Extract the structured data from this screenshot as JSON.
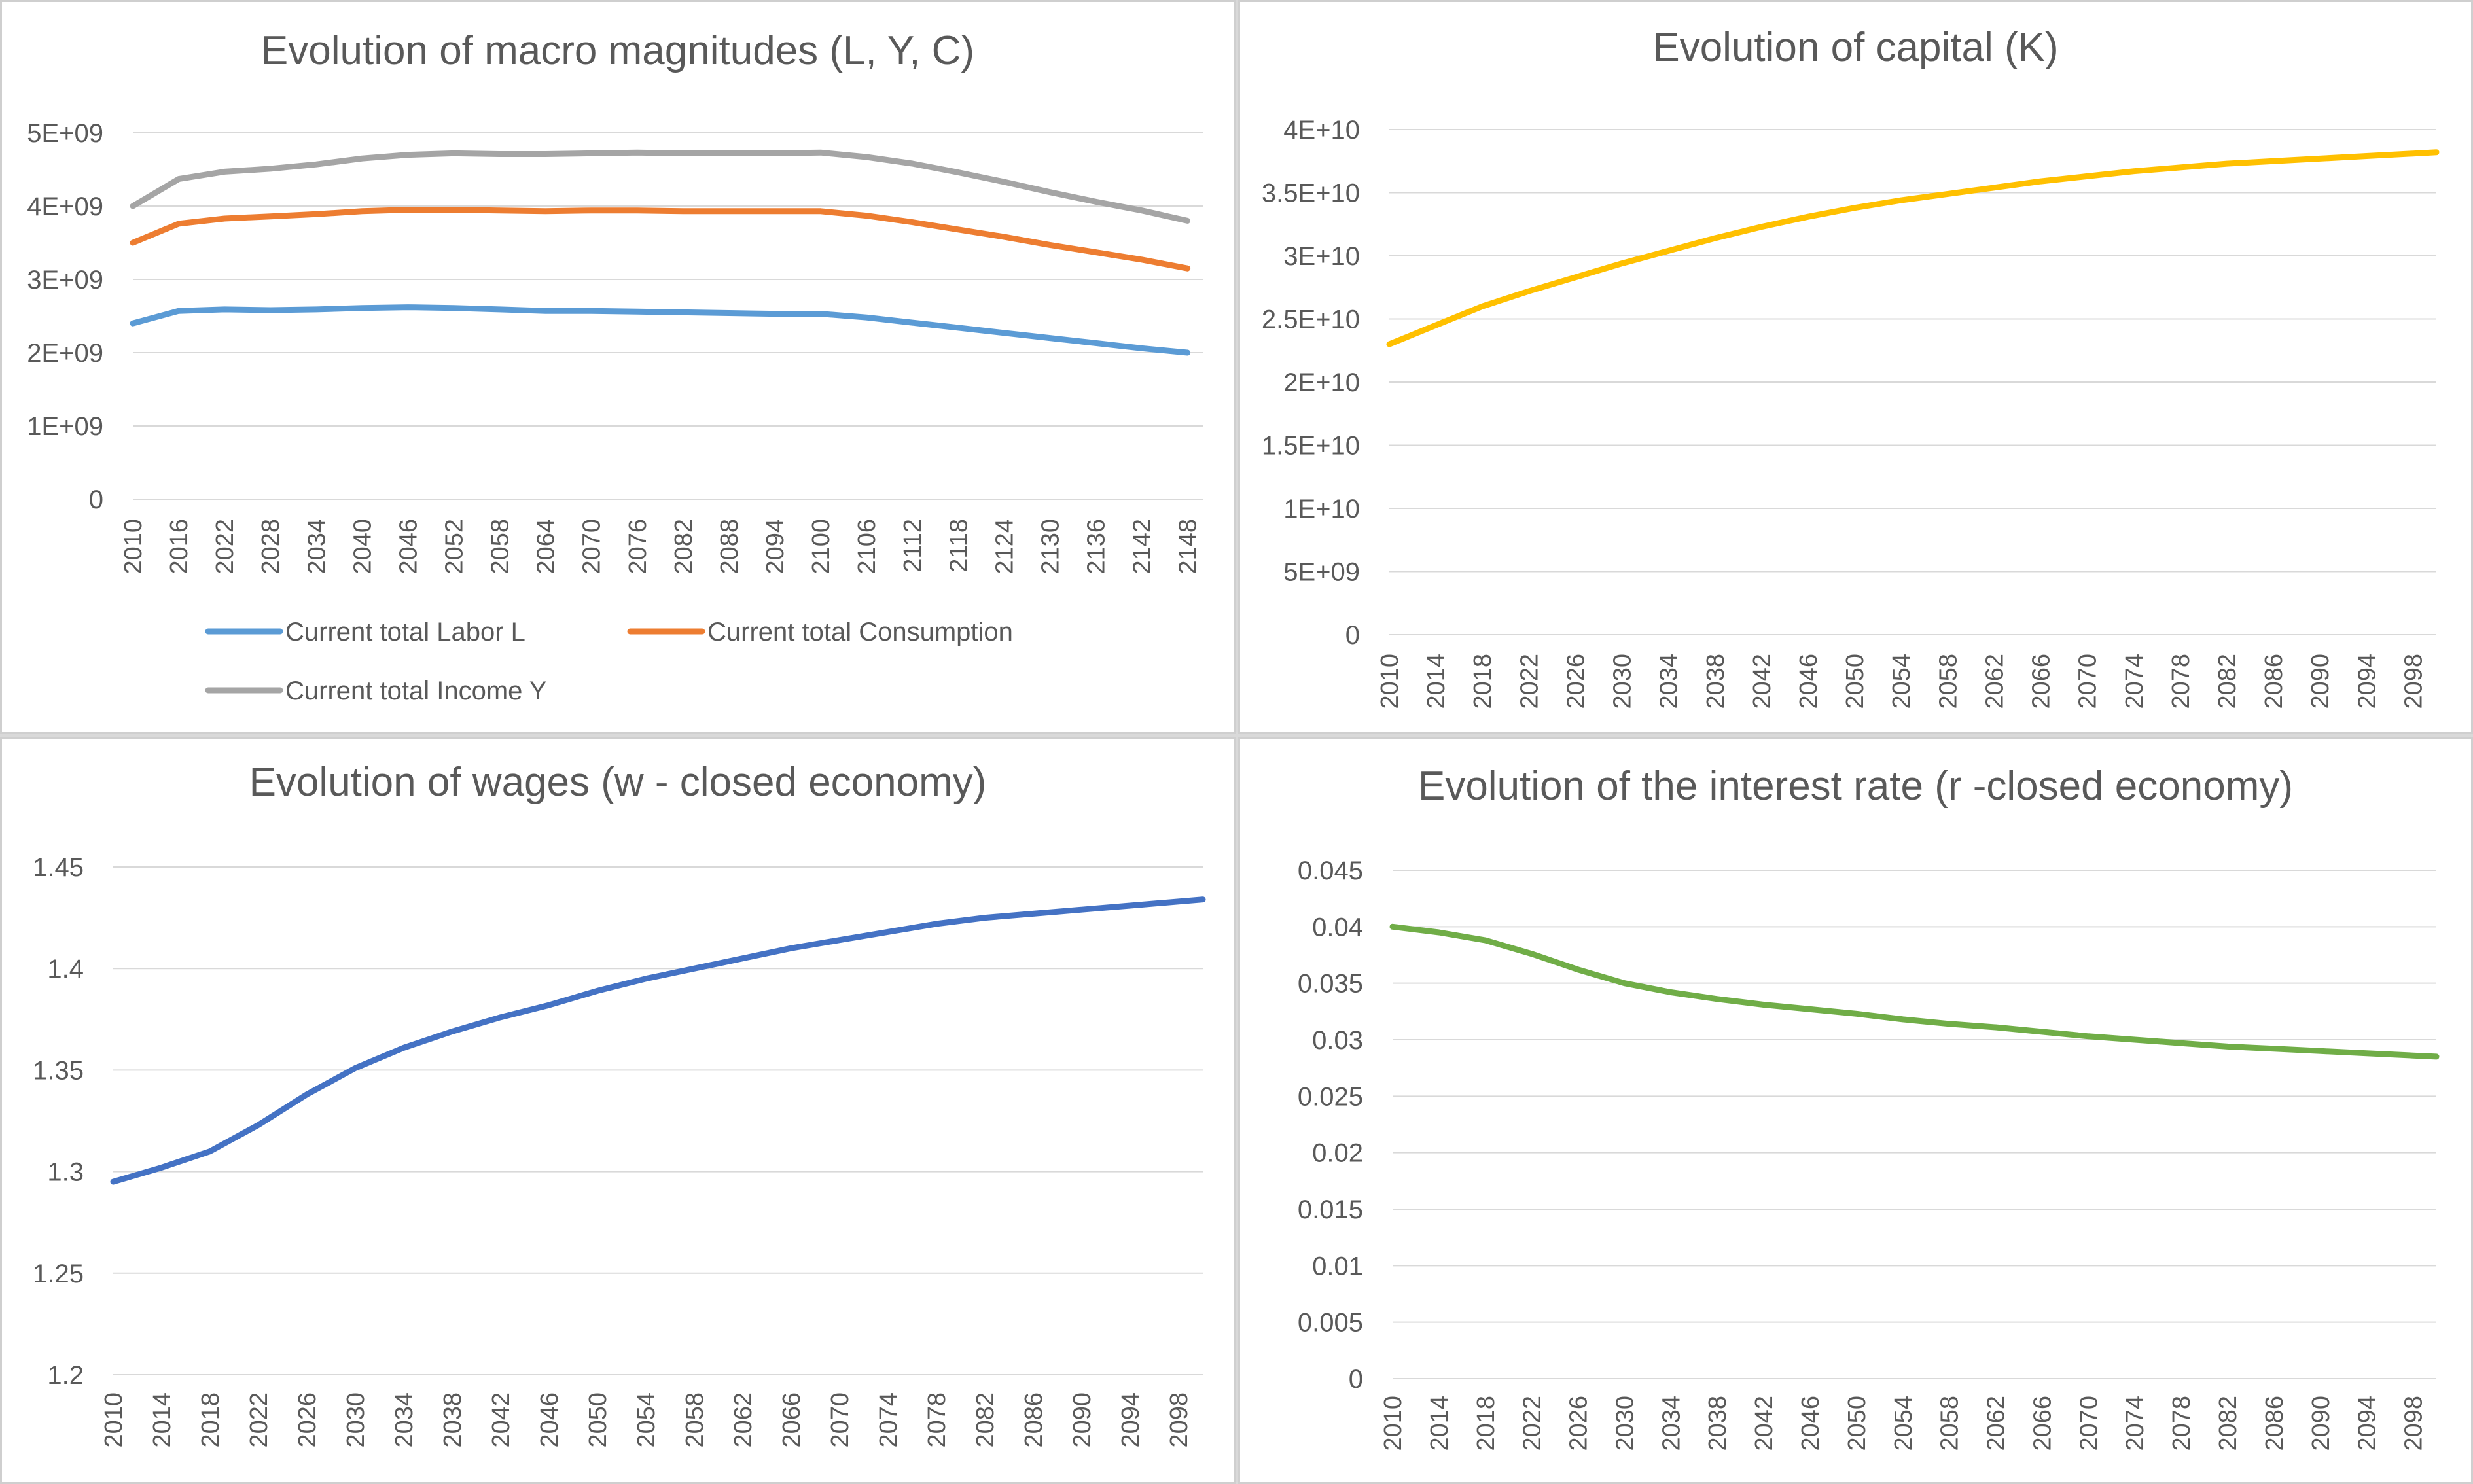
{
  "chart_data": [
    {
      "type": "line",
      "title": "Evolution of macro magnitudes (L, Y, C)",
      "xlabel": "",
      "ylabel": "",
      "x": [
        2010,
        2016,
        2022,
        2028,
        2034,
        2040,
        2046,
        2052,
        2058,
        2064,
        2070,
        2076,
        2082,
        2088,
        2094,
        2100,
        2106,
        2112,
        2118,
        2124,
        2130,
        2136,
        2142,
        2148
      ],
      "x_tick_labels": [
        "2010",
        "2016",
        "2022",
        "2028",
        "2034",
        "2040",
        "2046",
        "2052",
        "2058",
        "2064",
        "2070",
        "2076",
        "2082",
        "2088",
        "2094",
        "2100",
        "2106",
        "2112",
        "2118",
        "2124",
        "2130",
        "2136",
        "2142",
        "2148"
      ],
      "x_range": [
        2010,
        2150
      ],
      "ylim": [
        0,
        5000000000
      ],
      "y_tick_values": [
        0,
        1000000000,
        2000000000,
        3000000000,
        4000000000,
        5000000000
      ],
      "y_tick_labels": [
        "0",
        "1E+09",
        "2E+09",
        "3E+09",
        "4E+09",
        "5E+09"
      ],
      "grid": true,
      "legend_position": "bottom",
      "series": [
        {
          "name": "Current total Labor L",
          "color": "#5b9bd5",
          "values": [
            2400000000,
            2570000000,
            2590000000,
            2580000000,
            2590000000,
            2610000000,
            2620000000,
            2610000000,
            2590000000,
            2570000000,
            2570000000,
            2560000000,
            2550000000,
            2540000000,
            2530000000,
            2530000000,
            2480000000,
            2410000000,
            2340000000,
            2270000000,
            2200000000,
            2130000000,
            2060000000,
            2000000000
          ]
        },
        {
          "name": "Current total Consumption",
          "color": "#ed7d31",
          "values": [
            3500000000,
            3760000000,
            3830000000,
            3860000000,
            3890000000,
            3930000000,
            3950000000,
            3950000000,
            3940000000,
            3930000000,
            3940000000,
            3940000000,
            3930000000,
            3930000000,
            3930000000,
            3930000000,
            3870000000,
            3780000000,
            3680000000,
            3580000000,
            3470000000,
            3370000000,
            3270000000,
            3150000000
          ]
        },
        {
          "name": "Current total Income Y",
          "color": "#a5a5a5",
          "values": [
            4000000000,
            4370000000,
            4470000000,
            4510000000,
            4570000000,
            4650000000,
            4700000000,
            4720000000,
            4710000000,
            4710000000,
            4720000000,
            4730000000,
            4720000000,
            4720000000,
            4720000000,
            4730000000,
            4670000000,
            4580000000,
            4460000000,
            4330000000,
            4190000000,
            4060000000,
            3940000000,
            3800000000
          ]
        }
      ]
    },
    {
      "type": "line",
      "title": "Evolution of capital (K)",
      "xlabel": "",
      "ylabel": "",
      "x": [
        2010,
        2014,
        2018,
        2022,
        2026,
        2030,
        2034,
        2038,
        2042,
        2046,
        2050,
        2054,
        2058,
        2062,
        2066,
        2070,
        2074,
        2078,
        2082,
        2086,
        2090,
        2094,
        2098,
        2100
      ],
      "x_tick_labels": [
        "2010",
        "2014",
        "2018",
        "2022",
        "2026",
        "2030",
        "2034",
        "2038",
        "2042",
        "2046",
        "2050",
        "2054",
        "2058",
        "2062",
        "2066",
        "2070",
        "2074",
        "2078",
        "2082",
        "2086",
        "2090",
        "2094",
        "2098"
      ],
      "x_range": [
        2010,
        2100
      ],
      "ylim": [
        0,
        40000000000
      ],
      "y_tick_values": [
        0,
        5000000000,
        10000000000,
        15000000000,
        20000000000,
        25000000000,
        30000000000,
        35000000000,
        40000000000
      ],
      "y_tick_labels": [
        "0",
        "5E+09",
        "1E+10",
        "1.5E+10",
        "2E+10",
        "2.5E+10",
        "3E+10",
        "3.5E+10",
        "4E+10"
      ],
      "grid": true,
      "legend_position": "none",
      "series": [
        {
          "color": "#ffc000",
          "values": [
            23000000000,
            24500000000,
            26000000000,
            27200000000,
            28300000000,
            29400000000,
            30400000000,
            31400000000,
            32300000000,
            33100000000,
            33800000000,
            34400000000,
            34900000000,
            35400000000,
            35900000000,
            36300000000,
            36700000000,
            37000000000,
            37300000000,
            37500000000,
            37700000000,
            37900000000,
            38100000000,
            38200000000
          ]
        }
      ]
    },
    {
      "type": "line",
      "title": "Evolution of wages (w - closed economy)",
      "xlabel": "",
      "ylabel": "",
      "x": [
        2010,
        2014,
        2018,
        2022,
        2026,
        2030,
        2034,
        2038,
        2042,
        2046,
        2050,
        2054,
        2058,
        2062,
        2066,
        2070,
        2074,
        2078,
        2082,
        2086,
        2090,
        2094,
        2098,
        2100
      ],
      "x_tick_labels": [
        "2010",
        "2014",
        "2018",
        "2022",
        "2026",
        "2030",
        "2034",
        "2038",
        "2042",
        "2046",
        "2050",
        "2054",
        "2058",
        "2062",
        "2066",
        "2070",
        "2074",
        "2078",
        "2082",
        "2086",
        "2090",
        "2094",
        "2098"
      ],
      "x_range": [
        2010,
        2100
      ],
      "ylim": [
        1.2,
        1.45
      ],
      "y_tick_values": [
        1.2,
        1.25,
        1.3,
        1.35,
        1.4,
        1.45
      ],
      "y_tick_labels": [
        "1.2",
        "1.25",
        "1.3",
        "1.35",
        "1.4",
        "1.45"
      ],
      "grid": true,
      "legend_position": "none",
      "series": [
        {
          "color": "#4472c4",
          "values": [
            1.295,
            1.302,
            1.31,
            1.323,
            1.338,
            1.351,
            1.361,
            1.369,
            1.376,
            1.382,
            1.389,
            1.395,
            1.4,
            1.405,
            1.41,
            1.414,
            1.418,
            1.422,
            1.425,
            1.427,
            1.429,
            1.431,
            1.433,
            1.434
          ]
        }
      ]
    },
    {
      "type": "line",
      "title": "Evolution of the interest rate (r -closed economy)",
      "xlabel": "",
      "ylabel": "",
      "x": [
        2010,
        2014,
        2018,
        2022,
        2026,
        2030,
        2034,
        2038,
        2042,
        2046,
        2050,
        2054,
        2058,
        2062,
        2066,
        2070,
        2074,
        2078,
        2082,
        2086,
        2090,
        2094,
        2098,
        2100
      ],
      "x_tick_labels": [
        "2010",
        "2014",
        "2018",
        "2022",
        "2026",
        "2030",
        "2034",
        "2038",
        "2042",
        "2046",
        "2050",
        "2054",
        "2058",
        "2062",
        "2066",
        "2070",
        "2074",
        "2078",
        "2082",
        "2086",
        "2090",
        "2094",
        "2098"
      ],
      "x_range": [
        2010,
        2100
      ],
      "ylim": [
        0,
        0.045
      ],
      "y_tick_values": [
        0,
        0.005,
        0.01,
        0.015,
        0.02,
        0.025,
        0.03,
        0.035,
        0.04,
        0.045
      ],
      "y_tick_labels": [
        "0",
        "0.005",
        "0.01",
        "0.015",
        "0.02",
        "0.025",
        "0.03",
        "0.035",
        "0.04",
        "0.045"
      ],
      "grid": true,
      "legend_position": "none",
      "series": [
        {
          "color": "#70ad47",
          "values": [
            0.04,
            0.0395,
            0.0388,
            0.0376,
            0.0362,
            0.035,
            0.0342,
            0.0336,
            0.0331,
            0.0327,
            0.0323,
            0.0318,
            0.0314,
            0.0311,
            0.0307,
            0.0303,
            0.03,
            0.0297,
            0.0294,
            0.0292,
            0.029,
            0.0288,
            0.0286,
            0.0285
          ]
        }
      ]
    }
  ]
}
